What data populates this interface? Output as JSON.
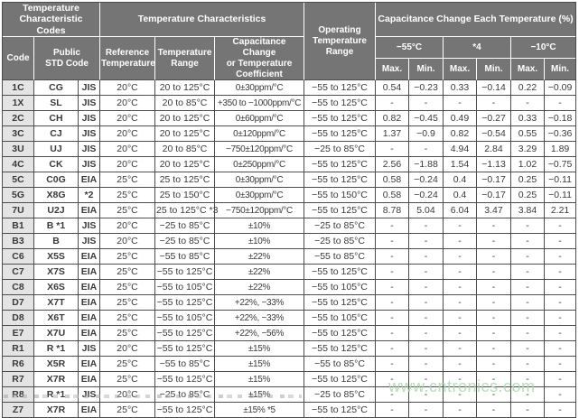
{
  "table": {
    "headers": {
      "group_codes": "Temperature\nCharacteristic Codes",
      "group_characteristics": "Temperature Characteristics",
      "operating": "Operating\nTemperature\nRange",
      "group_cap_change": "Capacitance Change Each Temperature (%)",
      "code": "Code",
      "public_std": "Public\nSTD Code",
      "ref_temp": "Reference\nTemperature",
      "temp_range": "Temperature\nRange",
      "cap_coeff": "Capacitance Change\nor Temperature\nCoefficient",
      "temp_groups": [
        "−55°C",
        "*4",
        "−10°C"
      ],
      "max": "Max.",
      "min": "Min."
    },
    "rows": [
      [
        "1C",
        "CG",
        "JIS",
        "20°C",
        "20 to 125°C",
        "0±30ppm/°C",
        "−55 to 125°C",
        "0.54",
        "−0.23",
        "0.33",
        "−0.14",
        "0.22",
        "−0.09"
      ],
      [
        "1X",
        "SL",
        "JIS",
        "20°C",
        "20 to 85°C",
        "+350 to −1000ppm/°C",
        "−55 to 125°C",
        "-",
        "-",
        "-",
        "-",
        "-",
        "-"
      ],
      [
        "2C",
        "CH",
        "JIS",
        "20°C",
        "20 to 125°C",
        "0±60ppm/°C",
        "−55 to 125°C",
        "0.82",
        "−0.45",
        "0.49",
        "−0.27",
        "0.33",
        "−0.18"
      ],
      [
        "3C",
        "CJ",
        "JIS",
        "20°C",
        "20 to 125°C",
        "0±120ppm/°C",
        "−55 to 125°C",
        "1.37",
        "−0.9",
        "0.82",
        "−0.54",
        "0.55",
        "−0.36"
      ],
      [
        "3U",
        "UJ",
        "JIS",
        "20°C",
        "20 to 85°C",
        "−750±120ppm/°C",
        "−25 to 85°C",
        "-",
        "-",
        "4.94",
        "2.84",
        "3.29",
        "1.89"
      ],
      [
        "4C",
        "CK",
        "JIS",
        "20°C",
        "20 to 125°C",
        "0±250ppm/°C",
        "−55 to 125°C",
        "2.56",
        "−1.88",
        "1.54",
        "−1.13",
        "1.02",
        "−0.75"
      ],
      [
        "5C",
        "C0G",
        "EIA",
        "25°C",
        "25 to 125°C",
        "0±30ppm/°C",
        "−55 to 125°C",
        "0.58",
        "−0.24",
        "0.4",
        "−0.17",
        "0.25",
        "−0.11"
      ],
      [
        "5G",
        "X8G",
        "*2",
        "25°C",
        "25 to 150°C",
        "0±30ppm/°C",
        "−55 to 150°C",
        "0.58",
        "−0.24",
        "0.4",
        "−0.17",
        "0.25",
        "−0.11"
      ],
      [
        "7U",
        "U2J",
        "EIA",
        "25°C",
        "25 to 125°C *3",
        "−750±120ppm/°C",
        "−55 to 125°C",
        "8.78",
        "5.04",
        "6.04",
        "3.47",
        "3.84",
        "2.21"
      ],
      [
        "B1",
        "B *1",
        "JIS",
        "20°C",
        "−25 to 85°C",
        "±10%",
        "−25 to 85°C",
        "-",
        "-",
        "-",
        "-",
        "-",
        "-"
      ],
      [
        "B3",
        "B",
        "JIS",
        "20°C",
        "−25 to 85°C",
        "±10%",
        "−25 to 85°C",
        "-",
        "-",
        "-",
        "-",
        "-",
        "-"
      ],
      [
        "C6",
        "X5S",
        "EIA",
        "25°C",
        "−55 to 85°C",
        "±22%",
        "−55 to 85°C",
        "-",
        "-",
        "-",
        "-",
        "-",
        "-"
      ],
      [
        "C7",
        "X7S",
        "EIA",
        "25°C",
        "−55 to 125°C",
        "±22%",
        "−55 to 125°C",
        "-",
        "-",
        "-",
        "-",
        "-",
        "-"
      ],
      [
        "C8",
        "X6S",
        "EIA",
        "25°C",
        "−55 to 105°C",
        "±22%",
        "−55 to 105°C",
        "-",
        "-",
        "-",
        "-",
        "-",
        "-"
      ],
      [
        "D7",
        "X7T",
        "EIA",
        "25°C",
        "−55 to 125°C",
        "+22%, −33%",
        "−55 to 125°C",
        "-",
        "-",
        "-",
        "-",
        "-",
        "-"
      ],
      [
        "D8",
        "X6T",
        "EIA",
        "25°C",
        "−55 to 105°C",
        "+22%, −33%",
        "−55 to 105°C",
        "-",
        "-",
        "-",
        "-",
        "-",
        "-"
      ],
      [
        "E7",
        "X7U",
        "EIA",
        "25°C",
        "−55 to 125°C",
        "+22%, −56%",
        "−55 to 125°C",
        "-",
        "-",
        "-",
        "-",
        "-",
        "-"
      ],
      [
        "R1",
        "R *1",
        "JIS",
        "20°C",
        "−55 to 125°C",
        "±15%",
        "−55 to 125°C",
        "-",
        "-",
        "-",
        "-",
        "-",
        "-"
      ],
      [
        "R6",
        "X5R",
        "EIA",
        "25°C",
        "−55 to 85°C",
        "±15%",
        "−55 to 85°C",
        "-",
        "-",
        "-",
        "-",
        "-",
        "-"
      ],
      [
        "R7",
        "X7R",
        "EIA",
        "25°C",
        "−55 to 125°C",
        "±15%",
        "−55 to 125°C",
        "-",
        "-",
        "-",
        "-",
        "-",
        "-"
      ],
      [
        "R8",
        "R *1",
        "JIS",
        "20°C",
        "−25 to 85°C",
        "±15%",
        "−25 to 85°C",
        "-",
        "-",
        "-",
        "-",
        "-",
        "-"
      ],
      [
        "Z7",
        "X7R",
        "EIA",
        "25°C",
        "−55 to 125°C",
        "±15% *5",
        "−55 to 125°C",
        "-",
        "-",
        "-",
        "-",
        "-",
        "-"
      ]
    ]
  },
  "watermark": "www.cntronics.com",
  "colors": {
    "header_bg": "#757575",
    "header_text": "#ffffff",
    "code_col_bg": "#e4e4e4",
    "border": "#4d4d4d",
    "text": "#3a3a3a",
    "watermark": "#aed6ae"
  }
}
